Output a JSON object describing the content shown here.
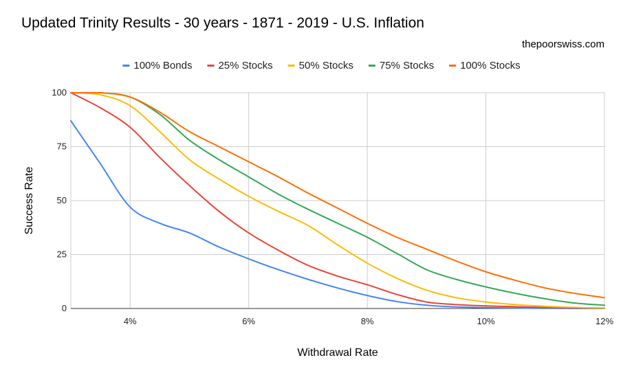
{
  "chart_data": {
    "type": "line",
    "title": "Updated Trinity Results - 30 years - 1871 - 2019 - U.S. Inflation",
    "watermark": "thepoorswiss.com",
    "xlabel": "Withdrawal Rate",
    "ylabel": "Success Rate",
    "xlim": [
      3,
      12
    ],
    "ylim": [
      0,
      100
    ],
    "grid": true,
    "legend_position": "top",
    "x_ticks": [
      {
        "value": 4,
        "label": "4%"
      },
      {
        "value": 6,
        "label": "6%"
      },
      {
        "value": 8,
        "label": "8%"
      },
      {
        "value": 10,
        "label": "10%"
      },
      {
        "value": 12,
        "label": "12%"
      }
    ],
    "y_ticks": [
      {
        "value": 0,
        "label": "0"
      },
      {
        "value": 25,
        "label": "25"
      },
      {
        "value": 50,
        "label": "50"
      },
      {
        "value": 75,
        "label": "75"
      },
      {
        "value": 100,
        "label": "100"
      }
    ],
    "x": [
      3,
      3.5,
      4,
      4.5,
      5,
      5.5,
      6,
      6.5,
      7,
      7.5,
      8,
      8.5,
      9,
      9.5,
      10,
      10.5,
      11,
      11.5,
      12
    ],
    "series": [
      {
        "name": "100% Bonds",
        "color": "#4285f4",
        "values": [
          87,
          67,
          47,
          39.5,
          35,
          28.5,
          23,
          18,
          13.5,
          9.5,
          6,
          3.2,
          1.5,
          0.7,
          0.4,
          0.2,
          0.1,
          0,
          0
        ]
      },
      {
        "name": "25% Stocks",
        "color": "#ea4335",
        "values": [
          100,
          93,
          84,
          70,
          57,
          45,
          35,
          27,
          20,
          15,
          11,
          6.5,
          3,
          1.8,
          1.2,
          0.8,
          0.5,
          0.3,
          0.2
        ]
      },
      {
        "name": "50% Stocks",
        "color": "#fbbc04",
        "values": [
          100,
          99,
          94,
          82,
          69,
          60,
          52,
          45,
          38.5,
          29.5,
          21,
          14,
          8.5,
          5,
          3,
          1.8,
          1,
          0.5,
          0.2
        ]
      },
      {
        "name": "75% Stocks",
        "color": "#34a853",
        "values": [
          100,
          100,
          98,
          90,
          78,
          69,
          61,
          53,
          46,
          39.5,
          33,
          25.5,
          18,
          13.5,
          10,
          7,
          4.5,
          2.5,
          1.5
        ]
      },
      {
        "name": "100% Stocks",
        "color": "#ff6d01",
        "values": [
          100,
          100,
          98,
          91,
          82,
          75,
          68,
          61,
          53.5,
          46.5,
          39.5,
          33,
          27.5,
          22,
          17,
          13,
          9.5,
          7,
          5
        ]
      }
    ]
  }
}
